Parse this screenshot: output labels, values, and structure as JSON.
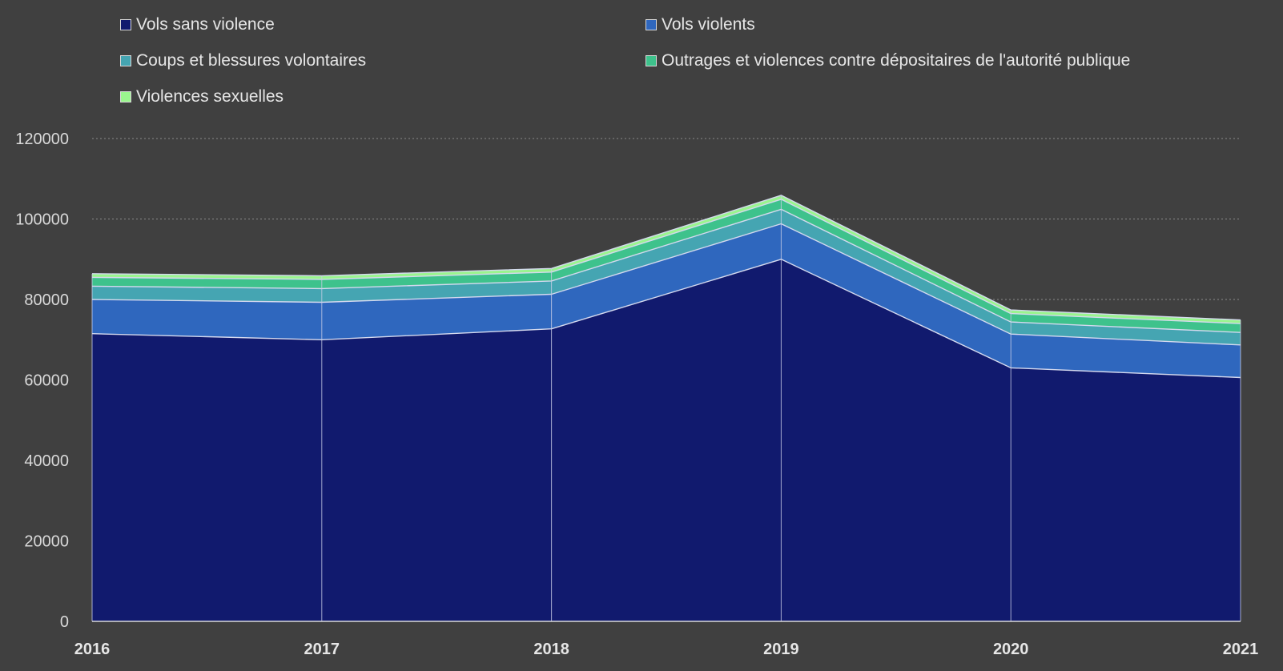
{
  "chart_data": {
    "type": "area",
    "stacked": true,
    "title": "",
    "xlabel": "",
    "ylabel": "",
    "x": [
      "2016",
      "2017",
      "2018",
      "2019",
      "2020",
      "2021"
    ],
    "ylim": [
      0,
      120000
    ],
    "yticks": [
      "0",
      "20000",
      "40000",
      "60000",
      "80000",
      "100000",
      "120000"
    ],
    "grid": "horizontal dotted",
    "legend_position": "top",
    "series": [
      {
        "name": "Vols sans violence",
        "color": "#111a6e",
        "values": [
          71500,
          70000,
          72700,
          90000,
          63000,
          60600
        ]
      },
      {
        "name": "Vols violents",
        "color": "#2f67be",
        "values": [
          8500,
          9300,
          8600,
          8800,
          8400,
          8100
        ]
      },
      {
        "name": "Coups et blessures volontaires",
        "color": "#45a5b2",
        "values": [
          3300,
          3400,
          3300,
          3600,
          3000,
          3100
        ]
      },
      {
        "name": "Outrages et violences contre dépositaires de l'autorité publique",
        "color": "#3ec28c",
        "values": [
          2200,
          2300,
          2200,
          2500,
          2100,
          2200
        ]
      },
      {
        "name": "Violences sexuelles",
        "color": "#9af58e",
        "values": [
          900,
          900,
          900,
          1000,
          900,
          900
        ]
      }
    ]
  }
}
